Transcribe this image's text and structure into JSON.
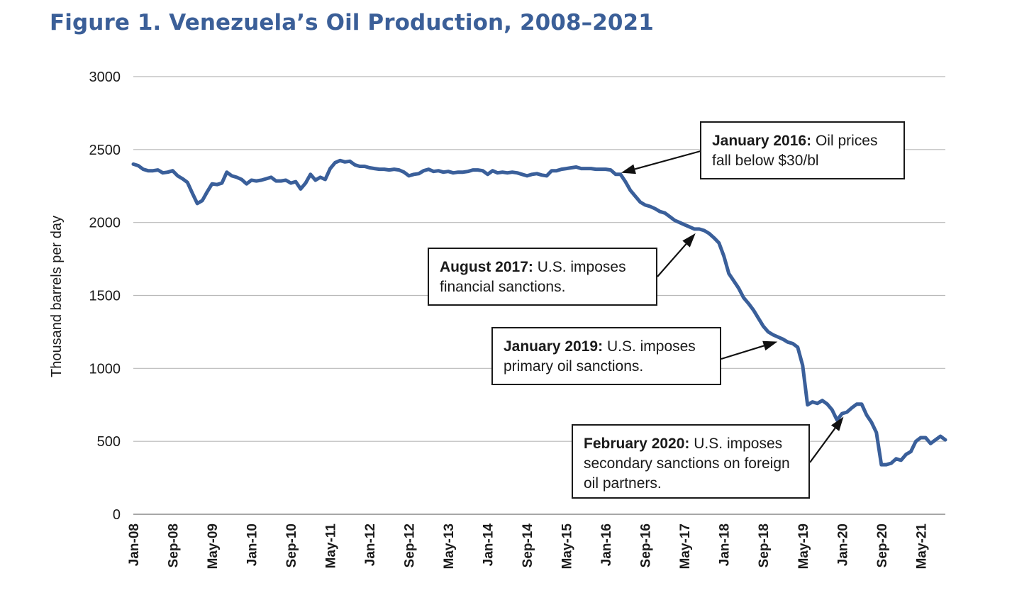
{
  "chart_data": {
    "type": "line",
    "title": "Figure 1. Venezuela’s Oil Production, 2008–2021",
    "ylabel": "Thousand barrels per day",
    "xlabel": "",
    "ylim": [
      0,
      3000
    ],
    "yticks": [
      "0",
      "500",
      "1000",
      "1500",
      "2000",
      "2500",
      "3000"
    ],
    "grid": true,
    "series_color": "#3a5f9a",
    "x_tick_labels": [
      "Jan-08",
      "Sep-08",
      "May-09",
      "Jan-10",
      "Sep-10",
      "May-11",
      "Jan-12",
      "Sep-12",
      "May-13",
      "Jan-14",
      "Sep-14",
      "May-15",
      "Jan-16",
      "Sep-16",
      "May-17",
      "Jan-18",
      "Sep-18",
      "May-19",
      "Jan-20",
      "Sep-20",
      "May-21"
    ],
    "series": [
      {
        "points": [
          [
            "2008-01",
            2400
          ],
          [
            "2008-02",
            2390
          ],
          [
            "2008-03",
            2365
          ],
          [
            "2008-04",
            2355
          ],
          [
            "2008-05",
            2355
          ],
          [
            "2008-06",
            2360
          ],
          [
            "2008-07",
            2340
          ],
          [
            "2008-08",
            2345
          ],
          [
            "2008-09",
            2355
          ],
          [
            "2008-10",
            2320
          ],
          [
            "2008-11",
            2300
          ],
          [
            "2008-12",
            2275
          ],
          [
            "2009-01",
            2200
          ],
          [
            "2009-02",
            2130
          ],
          [
            "2009-03",
            2150
          ],
          [
            "2009-04",
            2210
          ],
          [
            "2009-05",
            2265
          ],
          [
            "2009-06",
            2260
          ],
          [
            "2009-07",
            2270
          ],
          [
            "2009-08",
            2345
          ],
          [
            "2009-09",
            2320
          ],
          [
            "2009-10",
            2310
          ],
          [
            "2009-11",
            2295
          ],
          [
            "2009-12",
            2265
          ],
          [
            "2010-01",
            2290
          ],
          [
            "2010-02",
            2285
          ],
          [
            "2010-03",
            2290
          ],
          [
            "2010-04",
            2300
          ],
          [
            "2010-05",
            2310
          ],
          [
            "2010-06",
            2285
          ],
          [
            "2010-07",
            2285
          ],
          [
            "2010-08",
            2290
          ],
          [
            "2010-09",
            2270
          ],
          [
            "2010-10",
            2280
          ],
          [
            "2010-11",
            2230
          ],
          [
            "2010-12",
            2270
          ],
          [
            "2011-01",
            2330
          ],
          [
            "2011-02",
            2290
          ],
          [
            "2011-03",
            2310
          ],
          [
            "2011-04",
            2295
          ],
          [
            "2011-05",
            2370
          ],
          [
            "2011-06",
            2410
          ],
          [
            "2011-07",
            2425
          ],
          [
            "2011-08",
            2415
          ],
          [
            "2011-09",
            2420
          ],
          [
            "2011-10",
            2395
          ],
          [
            "2011-11",
            2385
          ],
          [
            "2011-12",
            2385
          ],
          [
            "2012-01",
            2375
          ],
          [
            "2012-02",
            2370
          ],
          [
            "2012-03",
            2365
          ],
          [
            "2012-04",
            2365
          ],
          [
            "2012-05",
            2360
          ],
          [
            "2012-06",
            2365
          ],
          [
            "2012-07",
            2360
          ],
          [
            "2012-08",
            2345
          ],
          [
            "2012-09",
            2320
          ],
          [
            "2012-10",
            2330
          ],
          [
            "2012-11",
            2335
          ],
          [
            "2012-12",
            2355
          ],
          [
            "2013-01",
            2365
          ],
          [
            "2013-02",
            2350
          ],
          [
            "2013-03",
            2355
          ],
          [
            "2013-04",
            2345
          ],
          [
            "2013-05",
            2350
          ],
          [
            "2013-06",
            2340
          ],
          [
            "2013-07",
            2345
          ],
          [
            "2013-08",
            2345
          ],
          [
            "2013-09",
            2350
          ],
          [
            "2013-10",
            2360
          ],
          [
            "2013-11",
            2360
          ],
          [
            "2013-12",
            2355
          ],
          [
            "2014-01",
            2330
          ],
          [
            "2014-02",
            2355
          ],
          [
            "2014-03",
            2340
          ],
          [
            "2014-04",
            2345
          ],
          [
            "2014-05",
            2340
          ],
          [
            "2014-06",
            2345
          ],
          [
            "2014-07",
            2340
          ],
          [
            "2014-08",
            2330
          ],
          [
            "2014-09",
            2320
          ],
          [
            "2014-10",
            2330
          ],
          [
            "2014-11",
            2335
          ],
          [
            "2014-12",
            2325
          ],
          [
            "2015-01",
            2320
          ],
          [
            "2015-02",
            2355
          ],
          [
            "2015-03",
            2355
          ],
          [
            "2015-04",
            2365
          ],
          [
            "2015-05",
            2370
          ],
          [
            "2015-06",
            2375
          ],
          [
            "2015-07",
            2380
          ],
          [
            "2015-08",
            2370
          ],
          [
            "2015-09",
            2370
          ],
          [
            "2015-10",
            2370
          ],
          [
            "2015-11",
            2365
          ],
          [
            "2015-12",
            2365
          ],
          [
            "2016-01",
            2365
          ],
          [
            "2016-02",
            2360
          ],
          [
            "2016-03",
            2330
          ],
          [
            "2016-04",
            2330
          ],
          [
            "2016-05",
            2280
          ],
          [
            "2016-06",
            2220
          ],
          [
            "2016-07",
            2180
          ],
          [
            "2016-08",
            2140
          ],
          [
            "2016-09",
            2120
          ],
          [
            "2016-10",
            2110
          ],
          [
            "2016-11",
            2095
          ],
          [
            "2016-12",
            2075
          ],
          [
            "2017-01",
            2065
          ],
          [
            "2017-02",
            2040
          ],
          [
            "2017-03",
            2015
          ],
          [
            "2017-04",
            2000
          ],
          [
            "2017-05",
            1985
          ],
          [
            "2017-06",
            1970
          ],
          [
            "2017-07",
            1955
          ],
          [
            "2017-08",
            1955
          ],
          [
            "2017-09",
            1945
          ],
          [
            "2017-10",
            1925
          ],
          [
            "2017-11",
            1895
          ],
          [
            "2017-12",
            1860
          ],
          [
            "2018-01",
            1770
          ],
          [
            "2018-02",
            1650
          ],
          [
            "2018-03",
            1600
          ],
          [
            "2018-04",
            1550
          ],
          [
            "2018-05",
            1485
          ],
          [
            "2018-06",
            1445
          ],
          [
            "2018-07",
            1400
          ],
          [
            "2018-08",
            1345
          ],
          [
            "2018-09",
            1290
          ],
          [
            "2018-10",
            1250
          ],
          [
            "2018-11",
            1230
          ],
          [
            "2018-12",
            1215
          ],
          [
            "2019-01",
            1200
          ],
          [
            "2019-02",
            1180
          ],
          [
            "2019-03",
            1170
          ],
          [
            "2019-04",
            1145
          ],
          [
            "2019-05",
            1020
          ],
          [
            "2019-06",
            750
          ],
          [
            "2019-07",
            770
          ],
          [
            "2019-08",
            760
          ],
          [
            "2019-09",
            780
          ],
          [
            "2019-10",
            755
          ],
          [
            "2019-11",
            715
          ],
          [
            "2019-12",
            645
          ],
          [
            "2020-01",
            690
          ],
          [
            "2020-02",
            700
          ],
          [
            "2020-03",
            730
          ],
          [
            "2020-04",
            755
          ],
          [
            "2020-05",
            755
          ],
          [
            "2020-06",
            680
          ],
          [
            "2020-07",
            630
          ],
          [
            "2020-08",
            560
          ],
          [
            "2020-09",
            340
          ],
          [
            "2020-10",
            340
          ],
          [
            "2020-11",
            350
          ],
          [
            "2020-12",
            380
          ],
          [
            "2021-01",
            370
          ],
          [
            "2021-02",
            410
          ],
          [
            "2021-03",
            430
          ],
          [
            "2021-04",
            500
          ],
          [
            "2021-05",
            525
          ],
          [
            "2021-06",
            525
          ],
          [
            "2021-07",
            485
          ],
          [
            "2021-08",
            510
          ],
          [
            "2021-09",
            535
          ],
          [
            "2021-10",
            510
          ]
        ]
      }
    ],
    "annotations": [
      {
        "bold": "January 2016:",
        "text": "Oil prices fall below $30/bl",
        "target": [
          "2016-03",
          2330
        ]
      },
      {
        "bold": "August 2017:",
        "text": "U.S. imposes financial sanctions.",
        "target": [
          "2017-08",
          1955
        ]
      },
      {
        "bold": "January 2019:",
        "text": "U.S. imposes primary oil sanctions.",
        "target": [
          "2019-01",
          1195
        ]
      },
      {
        "bold": "February 2020:",
        "text": "U.S. imposes secondary sanctions on foreign oil partners.",
        "target": [
          "2020-02",
          700
        ]
      }
    ]
  }
}
